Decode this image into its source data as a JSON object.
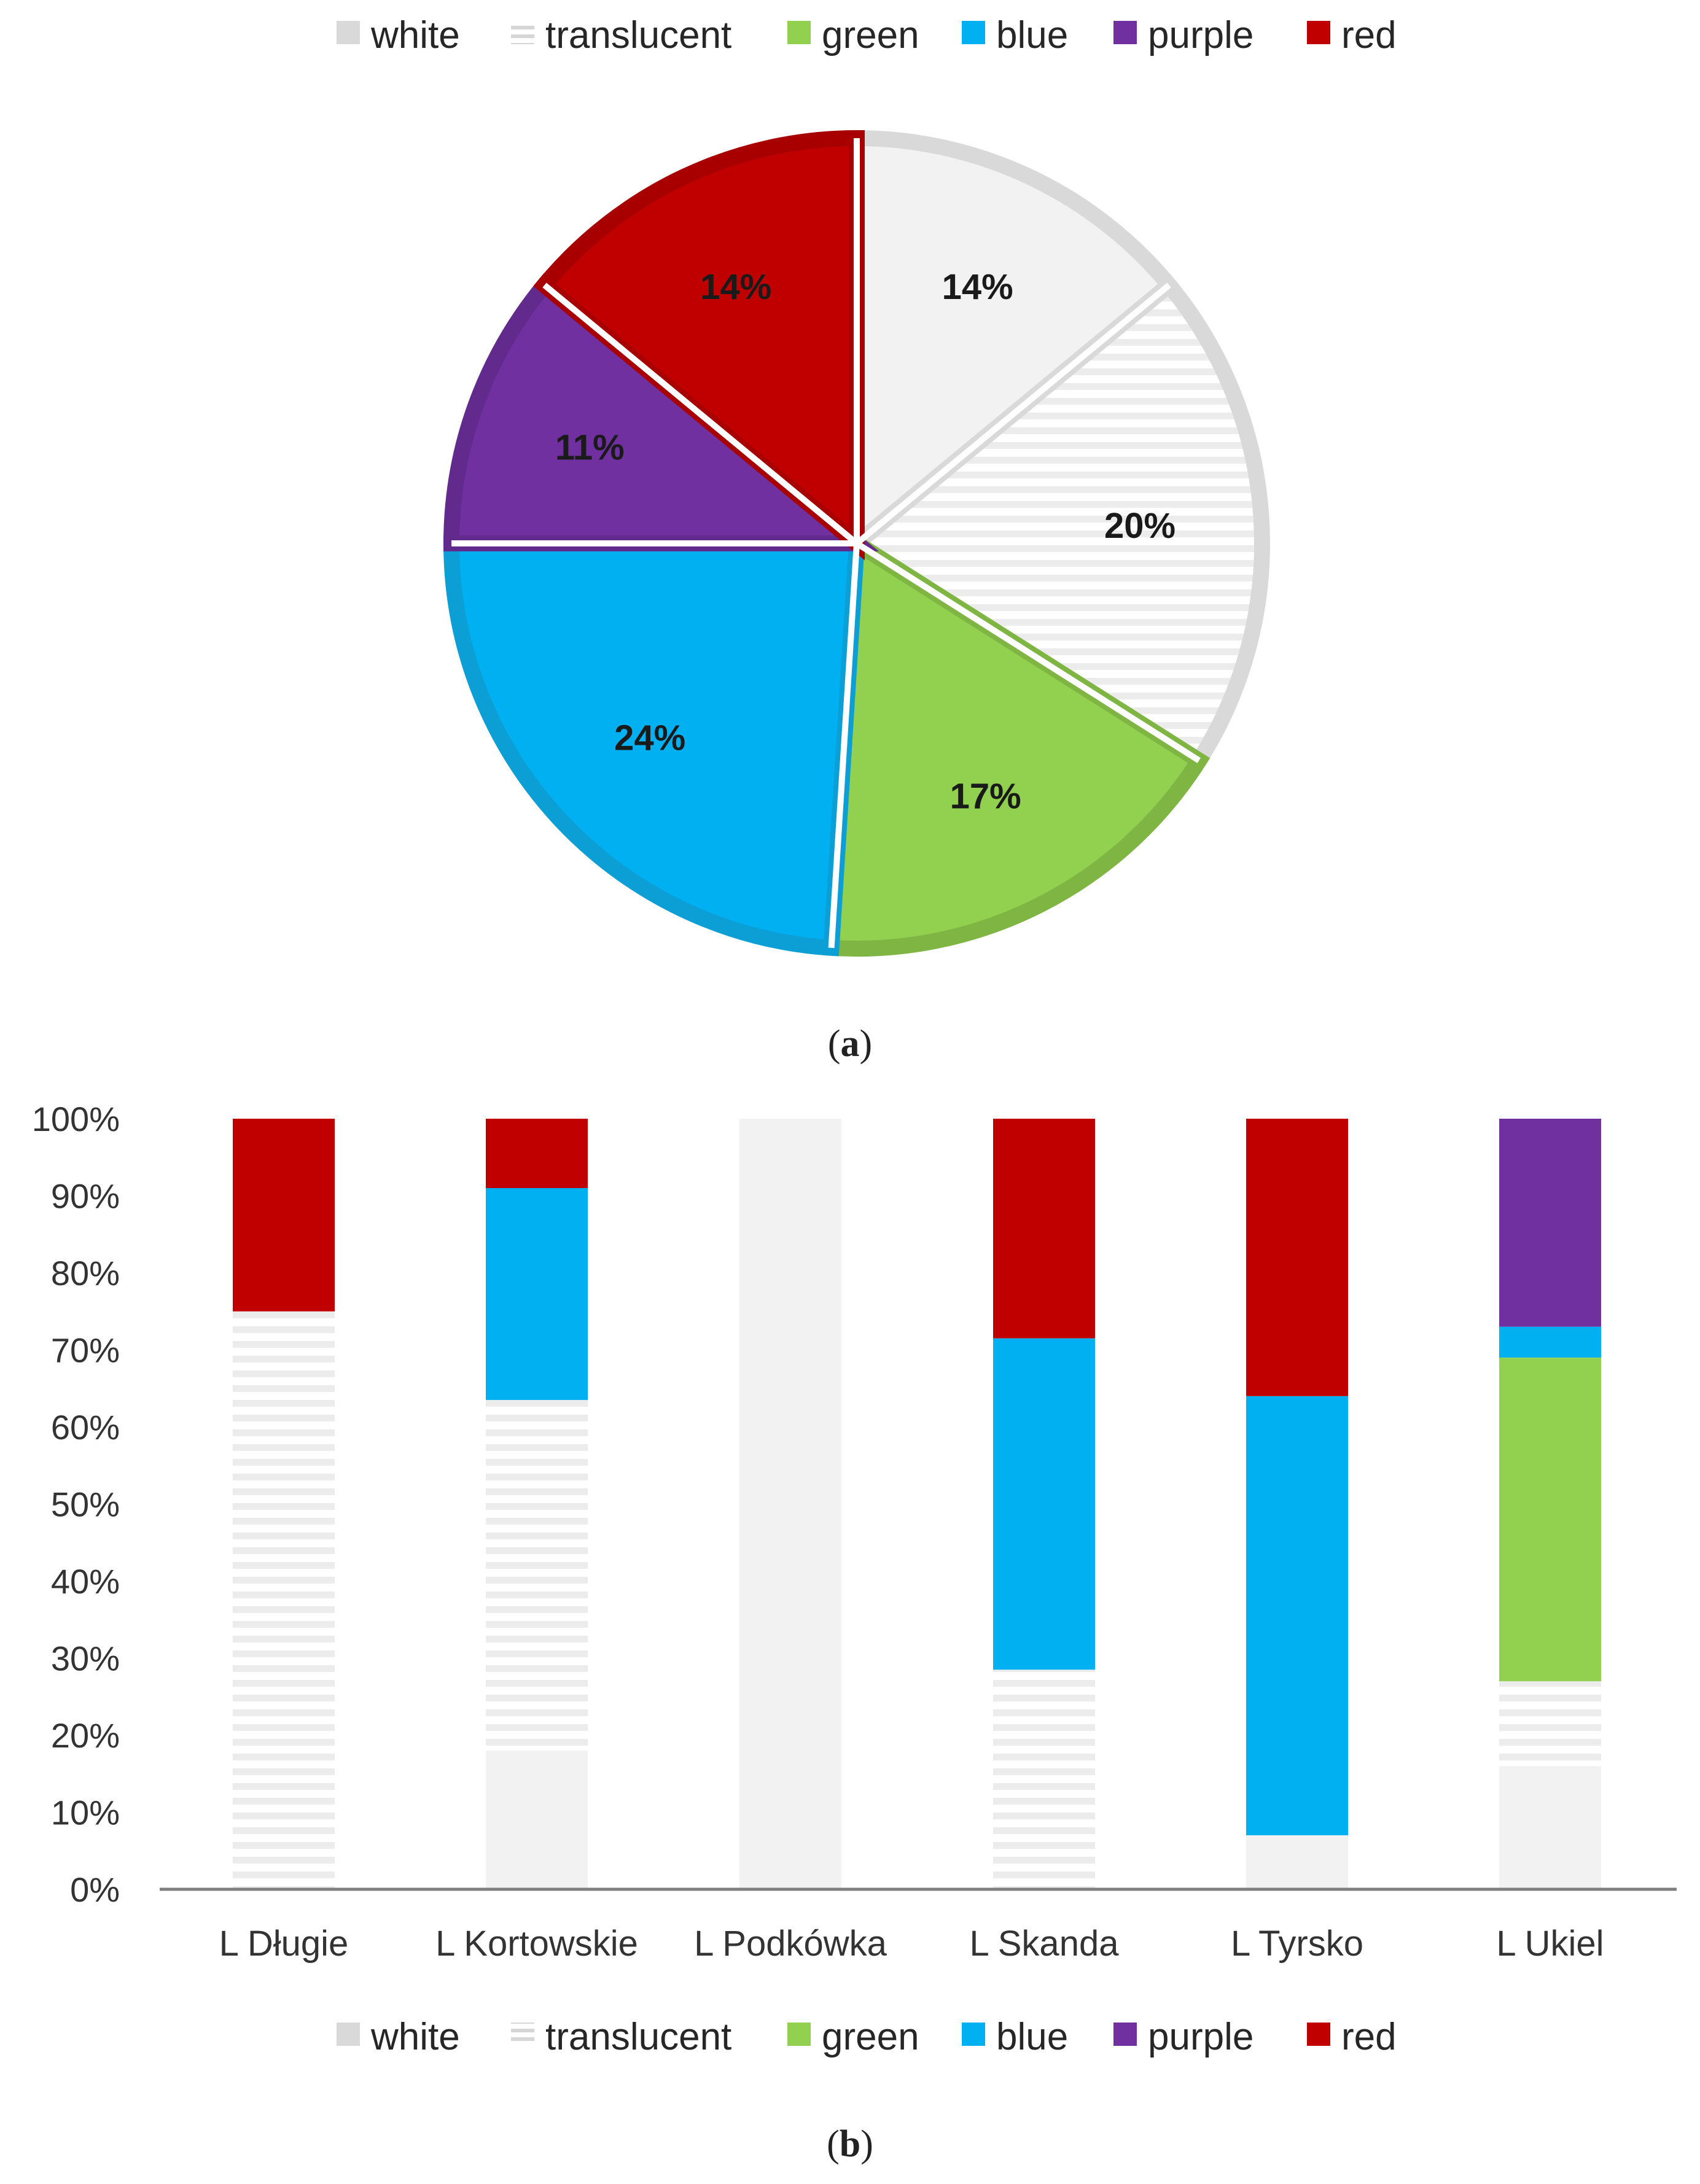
{
  "colors": {
    "white": "#f2f2f2",
    "white_edge": "#d9d9d9",
    "translucent_line": "#ececec",
    "green": "#92d050",
    "green_edge": "#7fb542",
    "blue": "#00b0f0",
    "blue_edge": "#0c9fd6",
    "purple": "#7030a0",
    "purple_edge": "#632a8d",
    "red": "#c00000",
    "red_edge": "#a80000",
    "axis": "#7f7f7f"
  },
  "chart_data": [
    {
      "type": "pie",
      "panel_label": "a",
      "legend": [
        "white",
        "translucent",
        "green",
        "blue",
        "purple",
        "red"
      ],
      "slices": [
        {
          "name": "white",
          "value": 14,
          "label": "14%"
        },
        {
          "name": "translucent",
          "value": 20,
          "label": "20%"
        },
        {
          "name": "green",
          "value": 17,
          "label": "17%"
        },
        {
          "name": "blue",
          "value": 24,
          "label": "24%"
        },
        {
          "name": "purple",
          "value": 11,
          "label": "11%"
        },
        {
          "name": "red",
          "value": 14,
          "label": "14%"
        }
      ],
      "legend_position": "top"
    },
    {
      "type": "bar",
      "stacked": true,
      "normalized": true,
      "panel_label": "b",
      "categories": [
        "L Długie",
        "L Kortowskie",
        "L Podkówka",
        "L Skanda",
        "L Tyrsko",
        "L Ukiel"
      ],
      "yticks": [
        "0%",
        "10%",
        "20%",
        "30%",
        "40%",
        "50%",
        "60%",
        "70%",
        "80%",
        "90%",
        "100%"
      ],
      "ylim": [
        0,
        100
      ],
      "series": [
        {
          "name": "white",
          "values": [
            0,
            18,
            100,
            0,
            7,
            16
          ]
        },
        {
          "name": "translucent",
          "values": [
            75,
            45.5,
            0,
            28.5,
            0,
            11
          ]
        },
        {
          "name": "green",
          "values": [
            0,
            0,
            0,
            0,
            0,
            42
          ]
        },
        {
          "name": "blue",
          "values": [
            0,
            27.5,
            0,
            43,
            57,
            4
          ]
        },
        {
          "name": "purple",
          "values": [
            0,
            0,
            0,
            0,
            0,
            27
          ]
        },
        {
          "name": "red",
          "values": [
            25,
            9,
            0,
            28.5,
            36,
            0
          ]
        }
      ],
      "legend": [
        "white",
        "translucent",
        "green",
        "blue",
        "purple",
        "red"
      ],
      "legend_position": "bottom",
      "grid": false
    }
  ]
}
